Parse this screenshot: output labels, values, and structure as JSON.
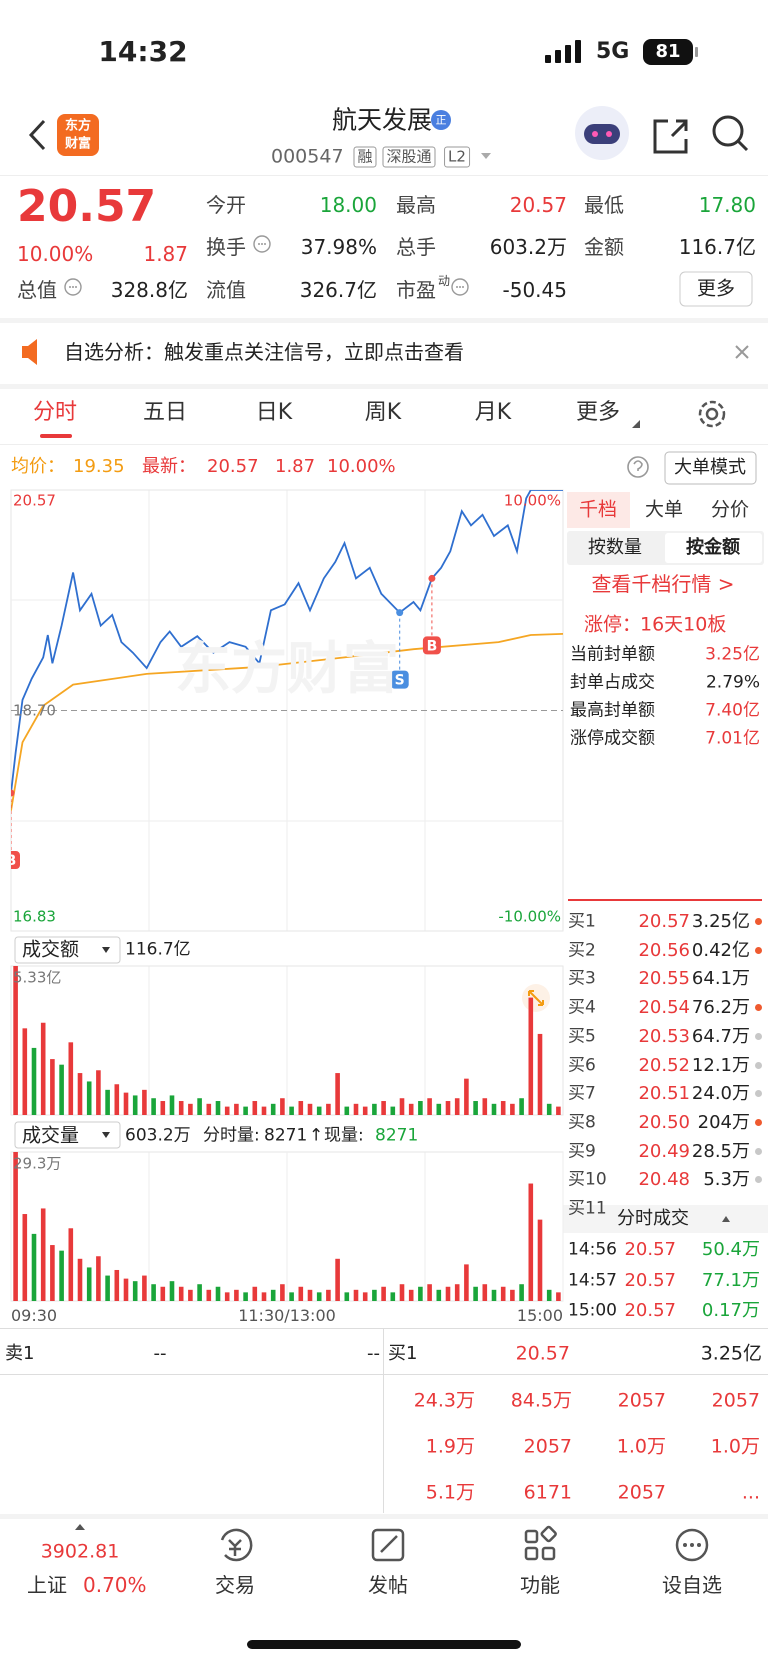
{
  "status_bar": {
    "time": "14:32",
    "network": "5G",
    "battery": "81"
  },
  "header": {
    "logo": [
      "东方",
      "财富"
    ],
    "title": "航天发展",
    "badge": "正",
    "code": "000547",
    "tags": [
      "融",
      "深股通",
      "L2"
    ]
  },
  "quote": {
    "price": "20.57",
    "change_pct": "10.00%",
    "change": "1.87",
    "fields": [
      {
        "label": "今开",
        "value": "18.00",
        "color": "#1aa53a"
      },
      {
        "label": "最高",
        "value": "20.57",
        "color": "#e8393a"
      },
      {
        "label": "最低",
        "value": "17.80",
        "color": "#1aa53a"
      },
      {
        "label": "换手",
        "value": "37.98%"
      },
      {
        "label": "总手",
        "value": "603.2万"
      },
      {
        "label": "金额",
        "value": "116.7亿"
      },
      {
        "label": "总值",
        "value": "328.8亿"
      },
      {
        "label": "流值",
        "value": "326.7亿"
      },
      {
        "label": "市盈",
        "sup": "动",
        "value": "-50.45"
      }
    ],
    "more_button": "更多"
  },
  "banner": {
    "text": "自选分析：触发重点关注信号，立即点击查看"
  },
  "tabs": [
    "分时",
    "五日",
    "日K",
    "周K",
    "月K",
    "更多"
  ],
  "info": {
    "avg_label": "均价：",
    "avg": "19.35",
    "last_label": "最新：",
    "last": "20.57",
    "change": "1.87",
    "change_pct": "10.00%",
    "mode_button": "大单模式"
  },
  "chart_data": [
    {
      "type": "line",
      "watermark": "东方财富",
      "series": [
        {
          "color": "#2f6fcf",
          "x": [
            0,
            2,
            5,
            9,
            14,
            16,
            18,
            22,
            27,
            30,
            35,
            39,
            44,
            48,
            53,
            59,
            65,
            69,
            74,
            81,
            88,
            95,
            102,
            108,
            113,
            119,
            125,
            130,
            136,
            141,
            145,
            150,
            156,
            161,
            169,
            175,
            178,
            183,
            187,
            191,
            196,
            200,
            205,
            210,
            216,
            220,
            224,
            226,
            240
          ],
          "values": [
            18.0,
            18.34,
            18.79,
            18.97,
            19.15,
            19.34,
            19.1,
            19.42,
            19.87,
            19.55,
            19.69,
            19.42,
            19.51,
            19.28,
            19.19,
            19.06,
            19.28,
            19.37,
            19.24,
            19.33,
            19.19,
            19.28,
            19.24,
            19.1,
            19.55,
            19.6,
            19.78,
            19.55,
            19.82,
            19.96,
            20.12,
            19.82,
            19.91,
            19.69,
            19.53,
            19.62,
            19.55,
            19.82,
            19.91,
            20.05,
            20.39,
            20.27,
            20.36,
            20.18,
            20.27,
            20.05,
            20.5,
            20.57,
            20.57
          ]
        },
        {
          "color": "#f5a623",
          "x": [
            0,
            5,
            14,
            27,
            59,
            108,
            145,
            175,
            212,
            226,
            240
          ],
          "values": [
            17.85,
            18.43,
            18.74,
            18.92,
            19.01,
            19.07,
            19.15,
            19.22,
            19.28,
            19.34,
            19.35
          ]
        }
      ],
      "markers": [
        {
          "label": "S",
          "x": 169,
          "color": "#4a8ee0"
        },
        {
          "label": "B",
          "x": 183,
          "color": "#f0504a"
        },
        {
          "label": "B",
          "x": 0,
          "color": "#f0504a"
        }
      ],
      "xlim": [
        0,
        240
      ],
      "ylim": [
        16.83,
        20.57
      ],
      "yticks": [
        20.57,
        {
          "value": 18.7,
          "label": "18.70"
        },
        16.83
      ],
      "y2lim": [
        -10,
        10
      ],
      "y2ticks": [
        {
          "value": 10,
          "label": "10.00%"
        },
        {
          "value": -10,
          "label": "-10.00%"
        }
      ]
    },
    {
      "type": "bar",
      "selector": "成交额",
      "total": "116.7亿",
      "x": [
        2,
        6,
        10,
        14,
        18,
        22,
        26,
        30,
        34,
        38,
        42,
        46,
        50,
        54,
        58,
        62,
        66,
        70,
        74,
        78,
        82,
        86,
        90,
        94,
        98,
        102,
        106,
        110,
        114,
        118,
        122,
        126,
        130,
        134,
        138,
        142,
        146,
        150,
        154,
        158,
        162,
        166,
        170,
        174,
        178,
        182,
        186,
        190,
        194,
        198,
        202,
        206,
        210,
        214,
        218,
        222,
        226,
        230,
        234,
        238
      ],
      "values": [
        5.33,
        3.1,
        2.4,
        3.3,
        2.0,
        1.8,
        2.6,
        1.5,
        1.2,
        1.6,
        0.9,
        1.1,
        0.8,
        0.7,
        0.9,
        0.6,
        0.5,
        0.7,
        0.5,
        0.4,
        0.6,
        0.4,
        0.5,
        0.3,
        0.4,
        0.3,
        0.5,
        0.3,
        0.4,
        0.6,
        0.3,
        0.5,
        0.4,
        0.3,
        0.4,
        1.5,
        0.3,
        0.4,
        0.3,
        0.4,
        0.5,
        0.3,
        0.6,
        0.4,
        0.5,
        0.6,
        0.4,
        0.5,
        0.6,
        1.3,
        0.5,
        0.6,
        0.4,
        0.5,
        0.4,
        0.6,
        4.2,
        2.9,
        0.4,
        0.3
      ],
      "colors": [
        "#e8393a",
        "#e8393a",
        "#1aa53a",
        "#e8393a",
        "#e8393a",
        "#1aa53a",
        "#e8393a",
        "#e8393a",
        "#1aa53a",
        "#e8393a",
        "#1aa53a",
        "#e8393a",
        "#e8393a",
        "#1aa53a",
        "#e8393a",
        "#1aa53a",
        "#e8393a",
        "#1aa53a",
        "#e8393a",
        "#e8393a",
        "#1aa53a",
        "#e8393a",
        "#1aa53a",
        "#e8393a",
        "#e8393a",
        "#1aa53a",
        "#e8393a",
        "#e8393a",
        "#1aa53a",
        "#e8393a",
        "#1aa53a",
        "#e8393a",
        "#e8393a",
        "#1aa53a",
        "#e8393a",
        "#e8393a",
        "#1aa53a",
        "#e8393a",
        "#e8393a",
        "#1aa53a",
        "#e8393a",
        "#1aa53a",
        "#e8393a",
        "#e8393a",
        "#1aa53a",
        "#e8393a",
        "#1aa53a",
        "#e8393a",
        "#e8393a",
        "#e8393a",
        "#1aa53a",
        "#e8393a",
        "#1aa53a",
        "#e8393a",
        "#e8393a",
        "#1aa53a",
        "#e8393a",
        "#e8393a",
        "#1aa53a",
        "#e8393a"
      ],
      "xlim": [
        0,
        240
      ],
      "ylim": [
        0,
        5.33
      ],
      "yticks": [
        {
          "value": 5.33,
          "label": "5.33亿"
        }
      ]
    },
    {
      "type": "bar",
      "selector": "成交量",
      "total": "603.2万",
      "stats": [
        "分时量:",
        "8271",
        "↑",
        "现量:",
        "8271"
      ],
      "x": [
        2,
        6,
        10,
        14,
        18,
        22,
        26,
        30,
        34,
        38,
        42,
        46,
        50,
        54,
        58,
        62,
        66,
        70,
        74,
        78,
        82,
        86,
        90,
        94,
        98,
        102,
        106,
        110,
        114,
        118,
        122,
        126,
        130,
        134,
        138,
        142,
        146,
        150,
        154,
        158,
        162,
        166,
        170,
        174,
        178,
        182,
        186,
        190,
        194,
        198,
        202,
        206,
        210,
        214,
        218,
        222,
        226,
        230,
        234,
        238
      ],
      "values": [
        29.3,
        17.1,
        13.2,
        18.2,
        11.0,
        9.9,
        14.3,
        8.3,
        6.6,
        8.8,
        5.0,
        6.1,
        4.4,
        3.9,
        5.0,
        3.3,
        2.8,
        3.9,
        2.8,
        2.2,
        3.3,
        2.2,
        2.8,
        1.7,
        2.2,
        1.7,
        2.8,
        1.7,
        2.2,
        3.3,
        1.7,
        2.8,
        2.2,
        1.7,
        2.2,
        8.3,
        1.7,
        2.2,
        1.7,
        2.2,
        2.8,
        1.7,
        3.3,
        2.2,
        2.8,
        3.3,
        2.2,
        2.8,
        3.3,
        7.2,
        2.8,
        3.3,
        2.2,
        2.8,
        2.2,
        3.3,
        23.1,
        16.0,
        2.2,
        1.7
      ],
      "colors": [
        "#e8393a",
        "#e8393a",
        "#1aa53a",
        "#e8393a",
        "#e8393a",
        "#1aa53a",
        "#e8393a",
        "#e8393a",
        "#1aa53a",
        "#e8393a",
        "#1aa53a",
        "#e8393a",
        "#e8393a",
        "#1aa53a",
        "#e8393a",
        "#1aa53a",
        "#e8393a",
        "#1aa53a",
        "#e8393a",
        "#e8393a",
        "#1aa53a",
        "#e8393a",
        "#1aa53a",
        "#e8393a",
        "#e8393a",
        "#1aa53a",
        "#e8393a",
        "#e8393a",
        "#1aa53a",
        "#e8393a",
        "#1aa53a",
        "#e8393a",
        "#e8393a",
        "#1aa53a",
        "#e8393a",
        "#e8393a",
        "#1aa53a",
        "#e8393a",
        "#e8393a",
        "#1aa53a",
        "#e8393a",
        "#1aa53a",
        "#e8393a",
        "#e8393a",
        "#1aa53a",
        "#e8393a",
        "#1aa53a",
        "#e8393a",
        "#e8393a",
        "#e8393a",
        "#1aa53a",
        "#e8393a",
        "#1aa53a",
        "#e8393a",
        "#e8393a",
        "#1aa53a",
        "#e8393a",
        "#e8393a",
        "#1aa53a",
        "#e8393a"
      ],
      "xlim": [
        0,
        240
      ],
      "ylim": [
        0,
        29.3
      ],
      "yticks": [
        {
          "value": 29.3,
          "label": "29.3万"
        }
      ],
      "xticks": [
        {
          "value": 0,
          "label": "09:30"
        },
        {
          "value": 120,
          "label": "11:30/13:00"
        },
        {
          "value": 240,
          "label": "15:00"
        }
      ]
    }
  ],
  "right_panel": {
    "tabs": [
      "千档",
      "大单",
      "分价"
    ],
    "subtabs": [
      "按数量",
      "按金额"
    ],
    "link": "查看千档行情 >",
    "limit_label": "涨停：",
    "limit_value": "16天10板",
    "stats": [
      {
        "label": "当前封单额",
        "value": "3.25亿",
        "color": "#e8393a"
      },
      {
        "label": "封单占成交",
        "value": "2.79%",
        "color": "#222222"
      },
      {
        "label": "最高封单额",
        "value": "7.40亿",
        "color": "#e8393a"
      },
      {
        "label": "涨停成交额",
        "value": "7.01亿",
        "color": "#e8393a"
      }
    ],
    "bids": [
      {
        "label": "买1",
        "price": "20.57",
        "amount": "3.25亿",
        "dot": "#ef5a2f"
      },
      {
        "label": "买2",
        "price": "20.56",
        "amount": "0.42亿",
        "dot": "#ef5a2f"
      },
      {
        "label": "买3",
        "price": "20.55",
        "amount": "64.1万"
      },
      {
        "label": "买4",
        "price": "20.54",
        "amount": "76.2万",
        "dot": "#ef5a2f"
      },
      {
        "label": "买5",
        "price": "20.53",
        "amount": "64.7万",
        "dot": "#c8c8c8"
      },
      {
        "label": "买6",
        "price": "20.52",
        "amount": "12.1万",
        "dot": "#c8c8c8"
      },
      {
        "label": "买7",
        "price": "20.51",
        "amount": "24.0万",
        "dot": "#c8c8c8"
      },
      {
        "label": "买8",
        "price": "20.50",
        "amount": "204万",
        "dot": "#ef5a2f"
      },
      {
        "label": "买9",
        "price": "20.49",
        "amount": "28.5万",
        "dot": "#c8c8c8"
      },
      {
        "label": "买10",
        "price": "20.48",
        "amount": "5.3万",
        "dot": "#c8c8c8"
      },
      {
        "label": "买11"
      }
    ],
    "trades_title": "分时成交",
    "trades": [
      {
        "time": "14:56",
        "price": "20.57",
        "amount": "50.4万"
      },
      {
        "time": "14:57",
        "price": "20.57",
        "amount": "77.1万"
      },
      {
        "time": "15:00",
        "price": "20.57",
        "amount": "0.17万"
      }
    ]
  },
  "order_table": {
    "ask": {
      "label": "卖1",
      "price": "--",
      "amount": "--"
    },
    "bid": {
      "label": "买1",
      "price": "20.57",
      "amount": "3.25亿"
    },
    "rows": [
      [
        "24.3万",
        "84.5万",
        "2057",
        "2057"
      ],
      [
        "1.9万",
        "2057",
        "1.0万",
        "1.0万"
      ],
      [
        "5.1万",
        "6171",
        "2057",
        "..."
      ]
    ]
  },
  "bottom_nav": {
    "index": {
      "value": "3902.81",
      "name": "上证",
      "change": "0.70%"
    },
    "items": [
      "交易",
      "发帖",
      "功能",
      "设自选"
    ]
  }
}
